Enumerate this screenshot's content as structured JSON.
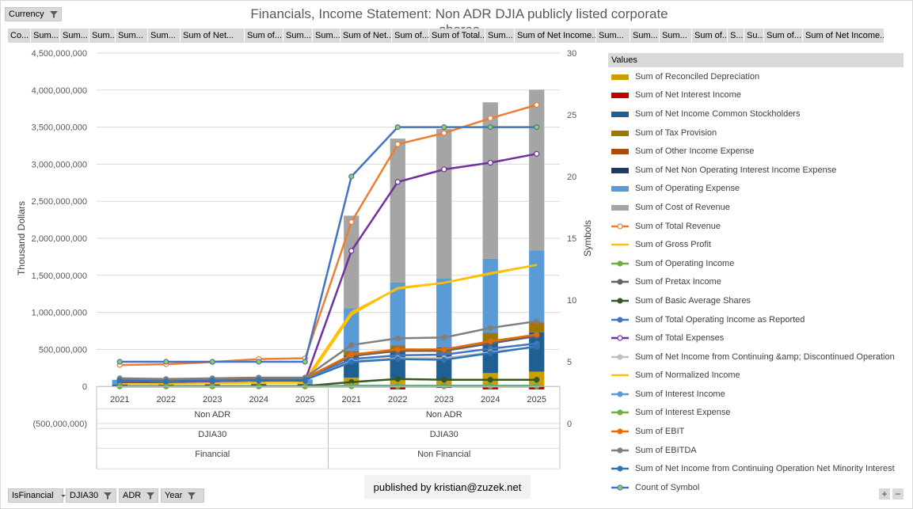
{
  "currency_filter": "Currency",
  "title": "Financials, Income Statement: Non ADR DJIA publicly listed corporate shares",
  "value_buttons": [
    "Co...",
    "Sum...",
    "Sum...",
    "Sum...",
    "Sum...",
    "Sum...",
    "Sum of Net...",
    "Sum of...",
    "Sum...",
    "Sum...",
    "Sum of Net...",
    "Sum of...",
    "Sum of Total...",
    "Sum...",
    "Sum of Net Income...",
    "Sum...",
    "Sum...",
    "Sum...",
    "Sum of...",
    "S...",
    "Su...",
    "Sum of...",
    "Sum of Net Income..."
  ],
  "legend_header": "Values",
  "axis_filters": [
    "IsFinancial",
    "DJIA30",
    "ADR",
    "Year"
  ],
  "publisher": "published by kristian@zuzek.net",
  "zoom": [
    "+",
    "−"
  ],
  "chart_data": {
    "type": "bar",
    "title": "Financials, Income Statement: Non ADR DJIA publicly listed corporate shares",
    "ylabel": "Thousand Dollars",
    "y2label": "Symbols",
    "xlabel": "Year",
    "ylim": [
      -500000000,
      4500000000
    ],
    "y2lim": [
      0,
      30
    ],
    "yticks": [
      "4,500,000,000",
      "4,000,000,000",
      "3,500,000,000",
      "3,000,000,000",
      "2,500,000,000",
      "2,000,000,000",
      "1,500,000,000",
      "1,000,000,000",
      "500,000,000",
      "0",
      "(500,000,000)"
    ],
    "y2ticks": [
      "30",
      "25",
      "20",
      "15",
      "10",
      "5",
      "0"
    ],
    "categories": [
      "2021",
      "2022",
      "2023",
      "2024",
      "2025",
      "2021",
      "2022",
      "2023",
      "2024",
      "2025"
    ],
    "groups": [
      {
        "adr": "Non ADR",
        "djia": "DJIA30",
        "financial": "Financial",
        "count": 5
      },
      {
        "adr": "Non ADR",
        "djia": "DJIA30",
        "financial": "Non Financial",
        "count": 5
      }
    ],
    "bar_series": [
      {
        "name": "Sum of Reconciled Depreciation",
        "color": "#c9a000",
        "values": [
          5000000,
          5000000,
          5000000,
          6000000,
          6000000,
          120000000,
          110000000,
          90000000,
          180000000,
          200000000
        ]
      },
      {
        "name": "Sum of Net Interest Income",
        "color": "#c00000",
        "values": [
          0,
          0,
          0,
          0,
          0,
          -10000000,
          -40000000,
          -20000000,
          -40000000,
          -40000000
        ]
      },
      {
        "name": "Sum of Net Income Common Stockholders",
        "color": "#1f5f91",
        "values": [
          20000000,
          15000000,
          20000000,
          25000000,
          25000000,
          300000000,
          380000000,
          360000000,
          420000000,
          530000000
        ]
      },
      {
        "name": "Sum of Tax Provision",
        "color": "#9c7800",
        "values": [
          5000000,
          4000000,
          5000000,
          5000000,
          5000000,
          40000000,
          50000000,
          60000000,
          110000000,
          120000000
        ]
      },
      {
        "name": "Sum of Other Income Expense",
        "color": "#a84d10",
        "values": [
          0,
          0,
          0,
          0,
          0,
          10000000,
          10000000,
          10000000,
          10000000,
          10000000
        ]
      },
      {
        "name": "Sum of Net Non Operating Interest Income Expense",
        "color": "#203864",
        "values": [
          0,
          0,
          0,
          0,
          0,
          5000000,
          5000000,
          5000000,
          5000000,
          5000000
        ]
      },
      {
        "name": "Sum of Operating Expense",
        "color": "#5b9bd5",
        "values": [
          60000000,
          50000000,
          55000000,
          60000000,
          60000000,
          580000000,
          850000000,
          930000000,
          1000000000,
          970000000
        ]
      },
      {
        "name": "Sum of Cost of Revenue",
        "color": "#a5a5a5",
        "values": [
          0,
          0,
          0,
          0,
          0,
          1250000000,
          1940000000,
          2020000000,
          2110000000,
          2170000000
        ]
      }
    ],
    "line_series": [
      {
        "name": "Sum of Total Revenue",
        "color": "#ed7d31",
        "marker": "open",
        "axis": "primary",
        "values": [
          290000000,
          300000000,
          330000000,
          370000000,
          380000000,
          2220000000,
          3270000000,
          3420000000,
          3620000000,
          3800000000
        ]
      },
      {
        "name": "Sum of Gross Profit",
        "color": "#ffc000",
        "marker": "none",
        "axis": "primary",
        "values": [
          40000000,
          40000000,
          45000000,
          50000000,
          50000000,
          970000000,
          1330000000,
          1400000000,
          1530000000,
          1640000000
        ]
      },
      {
        "name": "Sum of Operating Income",
        "color": "#70ad47",
        "marker": "dot",
        "axis": "primary",
        "values": [
          0,
          0,
          0,
          0,
          0,
          0,
          0,
          0,
          0,
          0
        ]
      },
      {
        "name": "Sum of Pretax Income",
        "color": "#636363",
        "marker": "dot",
        "axis": "primary",
        "values": [
          100000000,
          90000000,
          100000000,
          110000000,
          110000000,
          410000000,
          480000000,
          480000000,
          580000000,
          680000000
        ]
      },
      {
        "name": "Sum of Basic Average Shares",
        "color": "#375623",
        "marker": "dot",
        "axis": "primary",
        "values": [
          5000000,
          5000000,
          5000000,
          5000000,
          5000000,
          60000000,
          100000000,
          90000000,
          90000000,
          90000000
        ]
      },
      {
        "name": "Sum of Total Operating Income as Reported",
        "color": "#4472c4",
        "marker": "dot",
        "axis": "primary",
        "values": [
          90000000,
          80000000,
          90000000,
          100000000,
          100000000,
          370000000,
          420000000,
          430000000,
          510000000,
          580000000
        ]
      },
      {
        "name": "Sum of Total Expenses",
        "color": "#7030a0",
        "marker": "open",
        "axis": "primary",
        "values": [
          60000000,
          60000000,
          70000000,
          80000000,
          80000000,
          1830000000,
          2760000000,
          2930000000,
          3020000000,
          3140000000
        ]
      },
      {
        "name": "Sum of Net Income from Continuing &amp; Discontinued Operation",
        "color": "#bfbfbf",
        "marker": "dot",
        "axis": "primary",
        "values": [
          80000000,
          70000000,
          80000000,
          90000000,
          90000000,
          340000000,
          380000000,
          380000000,
          460000000,
          540000000
        ]
      },
      {
        "name": "Sum of Normalized Income",
        "color": "#ffc000",
        "marker": "none",
        "axis": "primary",
        "values": [
          80000000,
          70000000,
          80000000,
          90000000,
          90000000,
          1000000000,
          1320000000,
          1400000000,
          1520000000,
          1640000000
        ]
      },
      {
        "name": "Sum of Interest Income",
        "color": "#5b9bd5",
        "marker": "dot",
        "axis": "primary",
        "values": [
          0,
          0,
          0,
          0,
          0,
          10000000,
          10000000,
          10000000,
          10000000,
          10000000
        ]
      },
      {
        "name": "Sum of Interest Expense",
        "color": "#70ad47",
        "marker": "dot",
        "axis": "primary",
        "values": [
          0,
          0,
          0,
          0,
          0,
          5000000,
          5000000,
          5000000,
          5000000,
          5000000
        ]
      },
      {
        "name": "Sum of EBIT",
        "color": "#e36c09",
        "marker": "dot",
        "axis": "primary",
        "values": [
          100000000,
          90000000,
          100000000,
          110000000,
          110000000,
          430000000,
          500000000,
          500000000,
          610000000,
          700000000
        ]
      },
      {
        "name": "Sum of EBITDA",
        "color": "#7f7f7f",
        "marker": "dot",
        "axis": "primary",
        "values": [
          110000000,
          100000000,
          110000000,
          120000000,
          120000000,
          560000000,
          650000000,
          660000000,
          790000000,
          880000000
        ]
      },
      {
        "name": "Sum of Net Income from Continuing Operation Net Minority Interest",
        "color": "#2e75b6",
        "marker": "dot",
        "axis": "primary",
        "values": [
          80000000,
          70000000,
          80000000,
          90000000,
          90000000,
          330000000,
          370000000,
          360000000,
          450000000,
          540000000
        ]
      },
      {
        "name": "Count of Symbol",
        "color": "#4472c4",
        "marker": "green",
        "axis": "secondary",
        "values": [
          5,
          5,
          5,
          5,
          5,
          20,
          24,
          24,
          24,
          24
        ]
      }
    ]
  }
}
